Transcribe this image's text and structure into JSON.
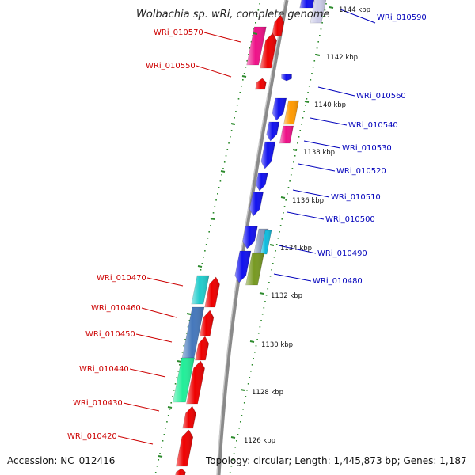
{
  "title": "Wolbachia sp. wRi, complete genome",
  "footer": {
    "accession": "Accession: NC_012416",
    "summary": "Topology: circular; Length: 1,445,873 bp; Genes: 1,187"
  },
  "colors": {
    "reverse_label": "#cc0000",
    "forward_label": "#0000bb",
    "backbone": "#8a8a8a",
    "ticks": "#2e8b2e"
  },
  "ticks": [
    {
      "label": "1126 kbp"
    },
    {
      "label": "1128 kbp"
    },
    {
      "label": "1130 kbp"
    },
    {
      "label": "1132 kbp"
    },
    {
      "label": "1134 kbp"
    },
    {
      "label": "1136 kbp"
    },
    {
      "label": "1138 kbp"
    },
    {
      "label": "1140 kbp"
    },
    {
      "label": "1142 kbp"
    },
    {
      "label": "1144 kbp"
    }
  ],
  "reverse_genes": [
    {
      "label": "WRi_010570"
    },
    {
      "label": "WRi_010550"
    },
    {
      "label": "WRi_010470"
    },
    {
      "label": "WRi_010460"
    },
    {
      "label": "WRi_010450"
    },
    {
      "label": "WRi_010440"
    },
    {
      "label": "WRi_010430"
    },
    {
      "label": "WRi_010420"
    }
  ],
  "forward_genes": [
    {
      "label": "WRi_010590"
    },
    {
      "label": "WRi_010560"
    },
    {
      "label": "WRi_010540"
    },
    {
      "label": "WRi_010530"
    },
    {
      "label": "WRi_010520"
    },
    {
      "label": "WRi_010510"
    },
    {
      "label": "WRi_010500"
    },
    {
      "label": "WRi_010490"
    },
    {
      "label": "WRi_010480"
    }
  ]
}
